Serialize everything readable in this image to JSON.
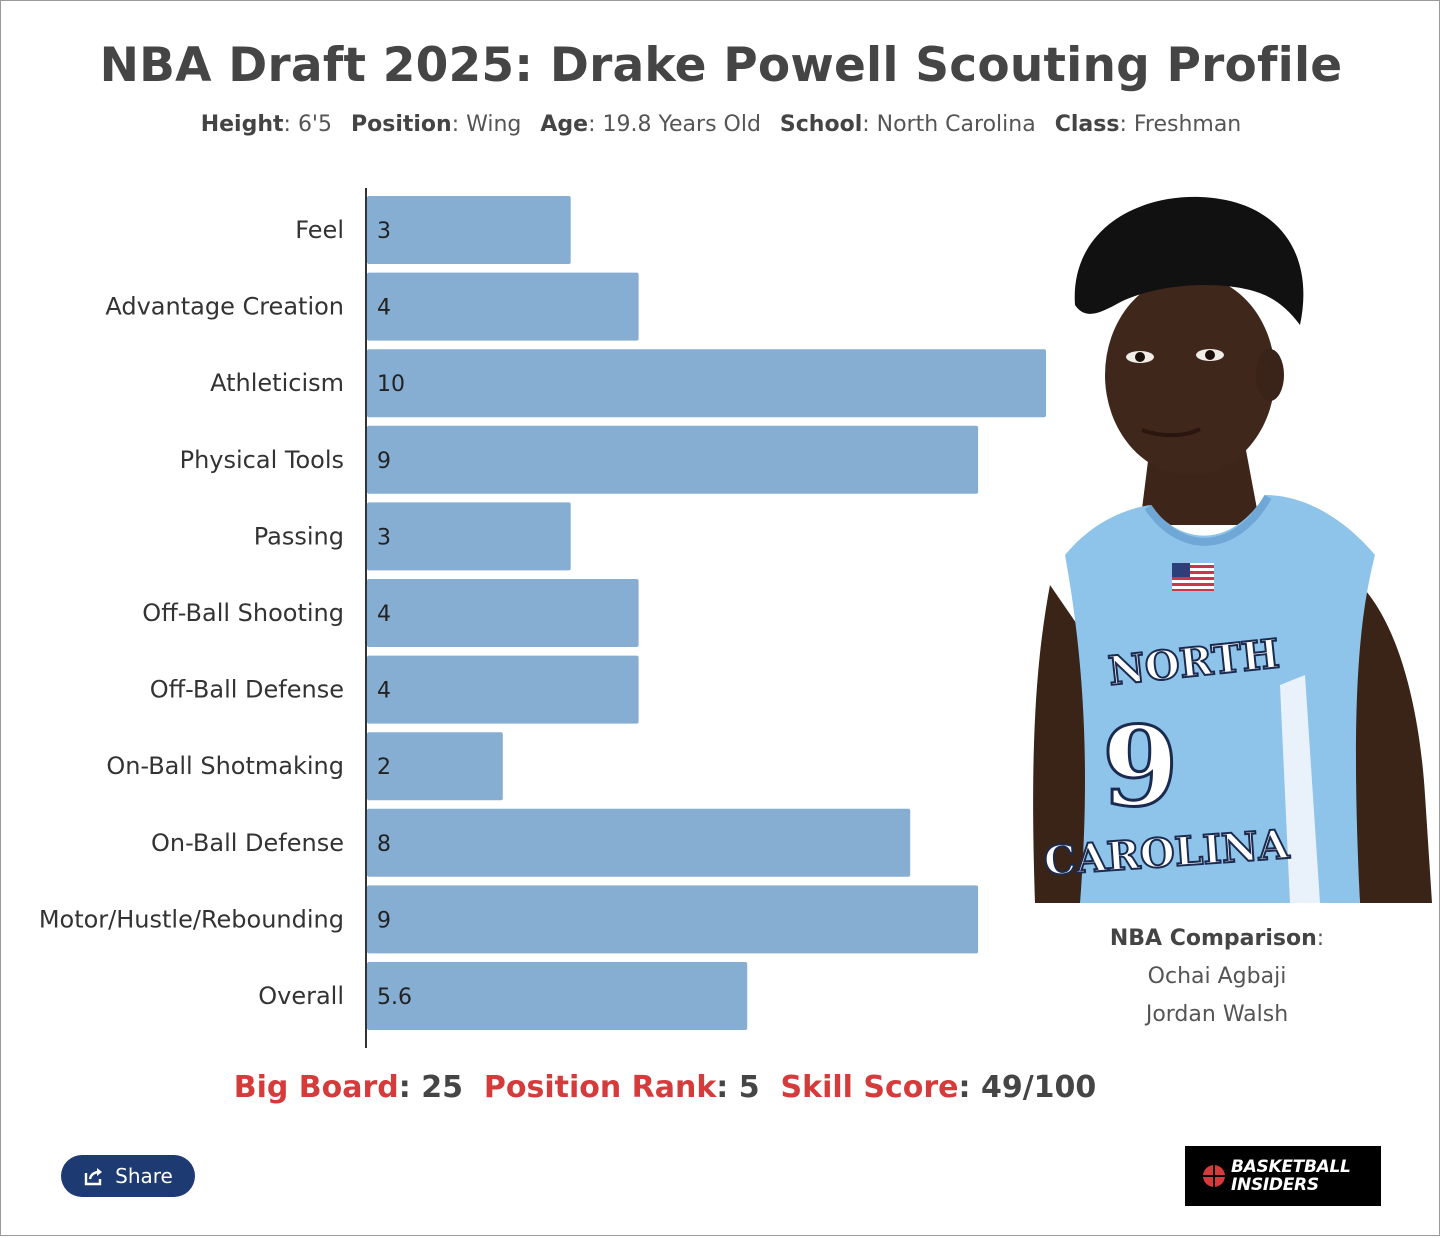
{
  "title": "NBA Draft 2025: Drake Powell Scouting Profile",
  "info": {
    "height_label": "Height",
    "height_value": "6'5",
    "position_label": "Position",
    "position_value": "Wing",
    "age_label": "Age",
    "age_value": "19.8 Years Old",
    "school_label": "School",
    "school_value": "North Carolina",
    "class_label": "Class",
    "class_value": "Freshman"
  },
  "chart_data": {
    "type": "bar",
    "orientation": "horizontal",
    "title": "",
    "xlabel": "",
    "ylabel": "",
    "xlim": [
      0,
      10
    ],
    "grid": false,
    "categories": [
      "Feel",
      "Advantage Creation",
      "Athleticism",
      "Physical Tools",
      "Passing",
      "Off-Ball Shooting",
      "Off-Ball Defense",
      "On-Ball Shotmaking",
      "On-Ball Defense",
      "Motor/Hustle/Rebounding",
      "Overall"
    ],
    "values": [
      3,
      4,
      10,
      9,
      3,
      4,
      4,
      2,
      8,
      9,
      5.6
    ],
    "value_labels": [
      "3",
      "4",
      "10",
      "9",
      "3",
      "4",
      "4",
      "2",
      "8",
      "9",
      "5.6"
    ],
    "bar_color": "#86aed3"
  },
  "comparison": {
    "label": "NBA Comparison",
    "players": [
      "Ochai Agbaji",
      "Jordan Walsh"
    ]
  },
  "rankings": {
    "big_board_label": "Big Board",
    "big_board_value": "25",
    "position_rank_label": "Position Rank",
    "position_rank_value": "5",
    "skill_score_label": "Skill Score",
    "skill_score_value": "49/100"
  },
  "share": {
    "label": "Share",
    "icon": "share-icon"
  },
  "logo": {
    "line1": "BASKETBALL",
    "line2": "INSIDERS",
    "icon": "basketball-icon"
  },
  "photo": {
    "jersey_text_top": "NORTH",
    "jersey_number": "9",
    "jersey_text_bottom": "CAROLINA"
  },
  "colors": {
    "accent_red": "#d63b3b",
    "bar": "#86aed3",
    "share_bg": "#1e3a73",
    "jersey": "#8ec3ea"
  }
}
